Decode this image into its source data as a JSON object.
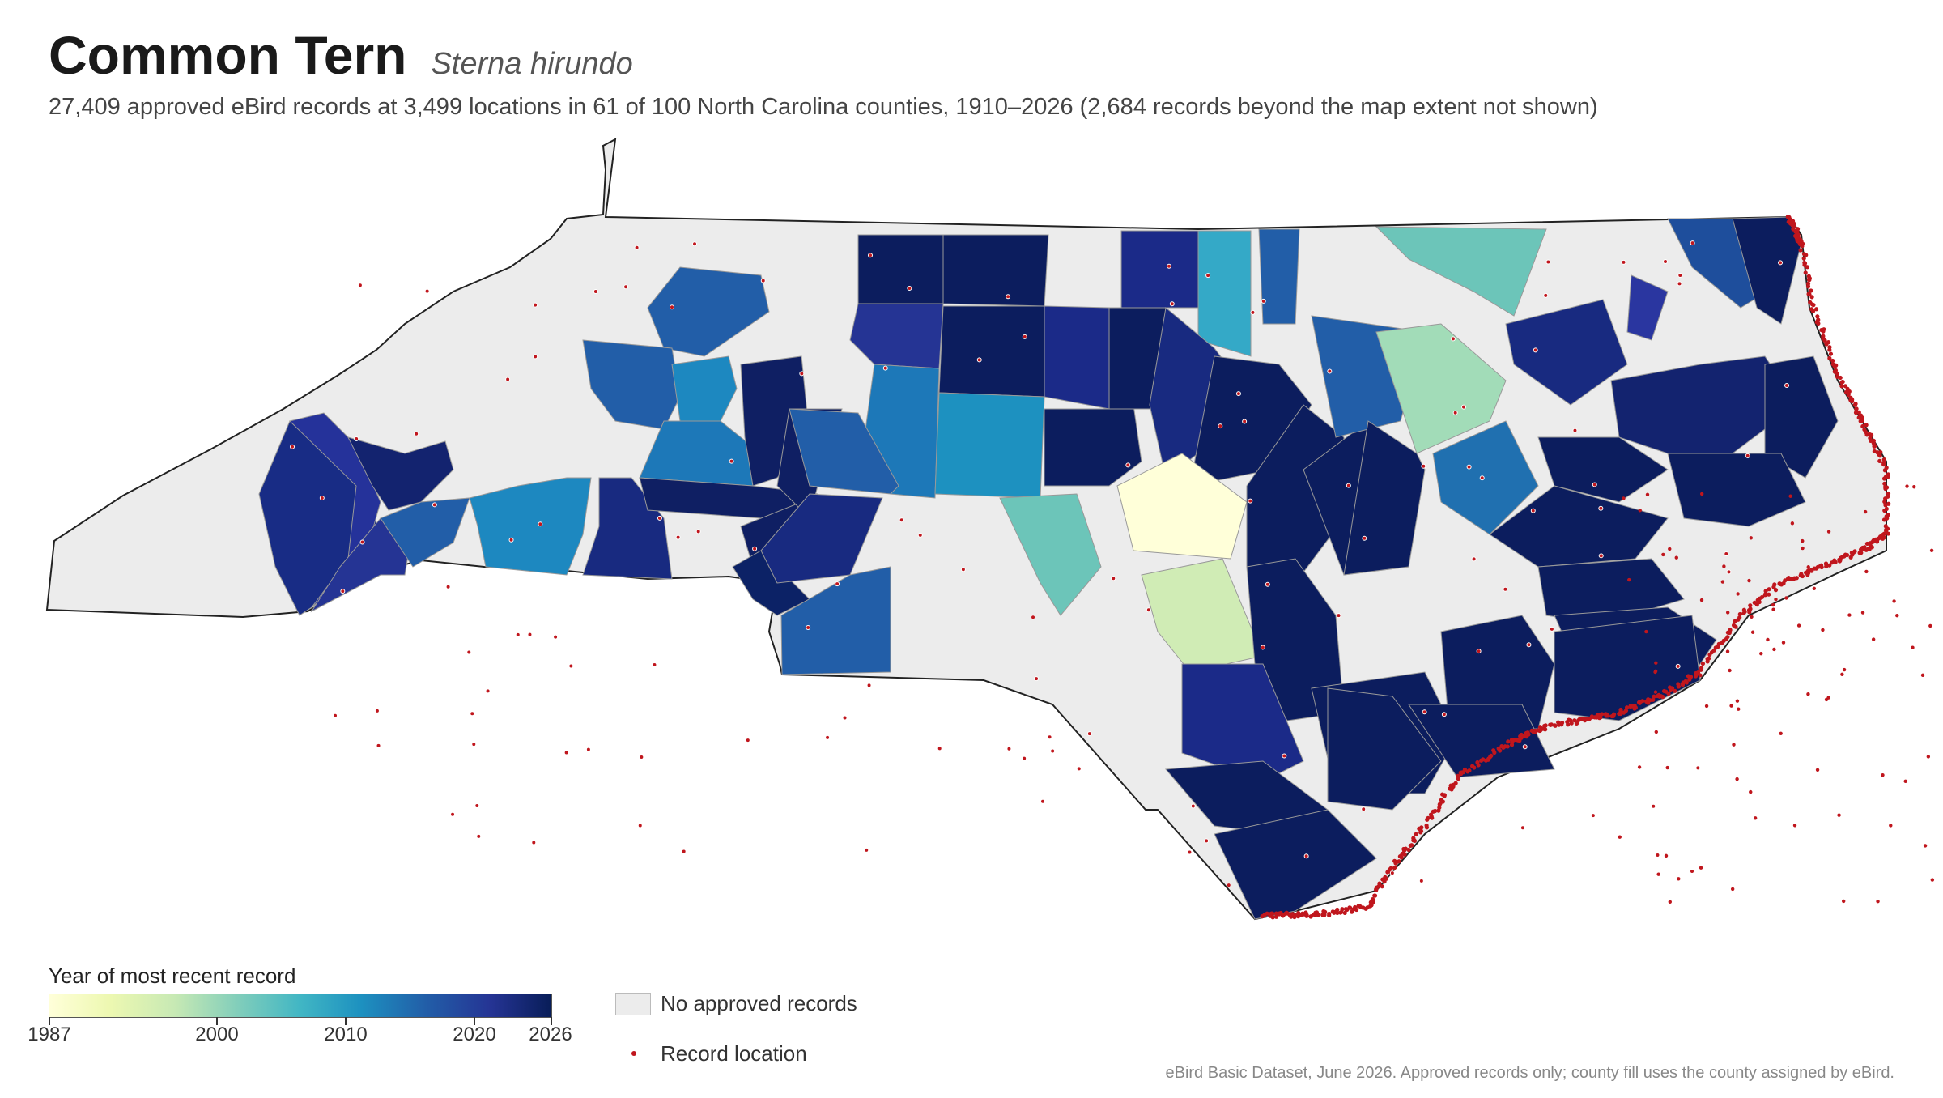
{
  "header": {
    "title": "Common Tern",
    "scientific_name": "Sterna hirundo",
    "subtitle": "27,409 approved eBird records at 3,499 locations in 61 of 100 North Carolina counties, 1910–2026 (2,684 records beyond the map extent not shown)"
  },
  "legend": {
    "title": "Year of most recent record",
    "scale": {
      "min": 1987,
      "max": 2026
    },
    "ticks": [
      "1987",
      "2000",
      "2010",
      "2020",
      "2026"
    ],
    "no_records_label": "No approved records",
    "record_label": "Record location",
    "colors": {
      "no_records": "#ececec",
      "record_dot": "#c0161d",
      "ramp": [
        "#ffffd9",
        "#edf8b1",
        "#c7e9b4",
        "#7fcdbb",
        "#41b6c4",
        "#1d91c0",
        "#225ea8",
        "#253494",
        "#081d58"
      ]
    }
  },
  "source": "eBird Basic Dataset, June 2026. Approved records only; county fill uses the county assigned by eBird."
}
